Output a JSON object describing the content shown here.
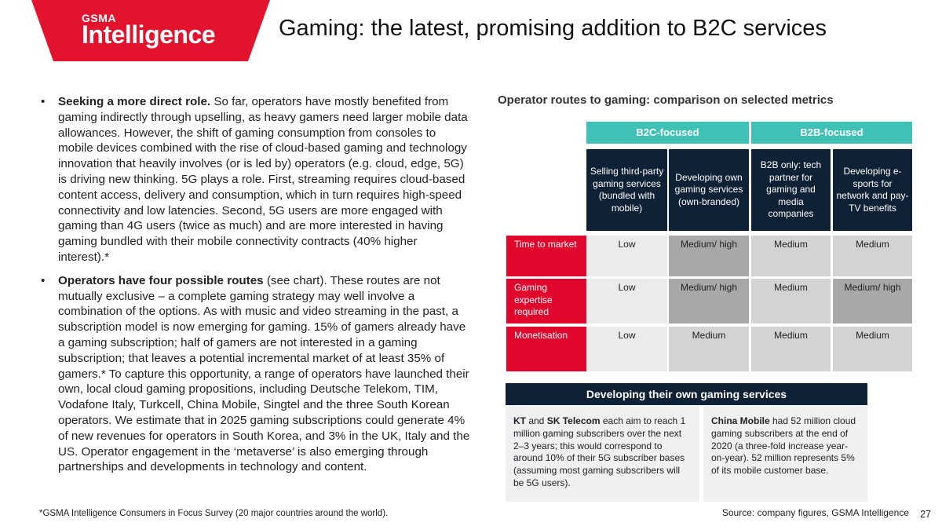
{
  "brand": {
    "small": "GSMA",
    "large": "Intelligence",
    "color": "#e3132d"
  },
  "title": "Gaming: the latest, promising addition to B2C services",
  "bullets": [
    {
      "lead": "Seeking a more direct role.",
      "text": " So far, operators have mostly benefited from gaming indirectly through upselling, as heavy gamers need larger mobile data allowances. However, the shift of gaming consumption from consoles to mobile devices combined with the rise of cloud-based gaming and technology innovation that heavily involves (or is led by) operators (e.g. cloud, edge, 5G) is driving new thinking. 5G plays a role. First, streaming requires cloud-based content access, delivery and consumption, which in turn requires high-speed connectivity and low latencies. Second, 5G users are more engaged with gaming than 4G users (twice as much) and are more interested in having gaming bundled with their mobile connectivity contracts (40% higher interest).*"
    },
    {
      "lead": "Operators have four possible routes",
      "text": " (see chart). These routes are not mutually exclusive – a complete gaming strategy may well involve a combination of the options. As with music and video streaming in the past, a subscription model is now emerging for gaming. 15% of gamers already have a gaming subscription; half of gamers are not interested in a gaming subscription; that leaves a potential incremental market of at least 35% of gamers.* To capture this opportunity, a range of operators have launched their own, local cloud gaming propositions, including Deutsche Telekom, TIM, Vodafone Italy, Turkcell, China Mobile, Singtel and the three South Korean operators. We estimate that in 2025 gaming subscriptions could generate 4% of new revenues for operators in South Korea, and 3% in the UK, Italy and the US. Operator engagement in the ‘metaverse’ is also emerging through partnerships and developments in technology and content."
    }
  ],
  "footnote": "*GSMA Intelligence Consumers in Focus Survey (20 major countries around the world).",
  "source": "Source: company figures, GSMA Intelligence",
  "page_number": "27",
  "chart_data": {
    "type": "table",
    "title": "Operator routes to gaming: comparison on selected metrics",
    "groups": [
      {
        "label": "B2C-focused",
        "columns": 2
      },
      {
        "label": "B2B-focused",
        "columns": 2
      }
    ],
    "columns": [
      "Selling third-party gaming services (bundled with mobile)",
      "Developing own gaming services (own-branded)",
      "B2B only: tech partner for gaming and media companies",
      "Developing e-sports for network and pay-TV benefits"
    ],
    "rows": [
      {
        "label": "Time to market",
        "values": [
          "Low",
          "Medium/ high",
          "Medium",
          "Medium"
        ]
      },
      {
        "label": "Gaming expertise required",
        "values": [
          "Low",
          "Medium/ high",
          "Medium",
          "Medium/ high"
        ]
      },
      {
        "label": "Monetisation",
        "values": [
          "Low",
          "Medium",
          "Medium",
          "Medium"
        ]
      }
    ],
    "palette": {
      "low": "#ebebeb",
      "medium": "#d3d3d3",
      "medium_high": "#a8a8a8",
      "group": "#3fc1b5",
      "header": "#0f2135",
      "row": "#e0062c"
    }
  },
  "case_study": {
    "title": "Developing their own gaming services",
    "left": {
      "b1": "KT",
      "t1": " and ",
      "b2": "SK Telecom",
      "t2": " each aim to reach 1 million gaming subscribers over the next 2–3 years; this would correspond to around 10% of their 5G subscriber bases (assuming most gaming subscribers will be 5G users)."
    },
    "right": {
      "b1": "China Mobile",
      "t1": " had 52 million cloud gaming subscribers at the end of 2020 (a three-fold increase year-on-year). 52 million represents 5% of its mobile customer base."
    }
  }
}
